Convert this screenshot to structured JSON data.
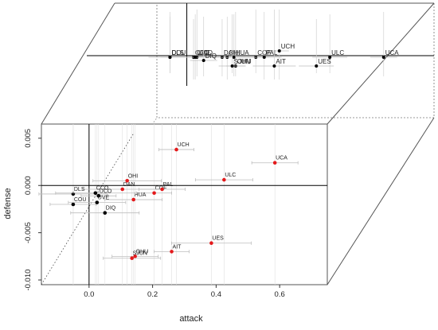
{
  "chart_data": {
    "type": "scatter",
    "xlabel": "attack",
    "ylabel": "defense",
    "xlim": [
      -0.15,
      0.75
    ],
    "ylim": [
      -0.0105,
      0.0065
    ],
    "x_ticks": [
      {
        "value": 0.0,
        "label": "0.0"
      },
      {
        "value": 0.2,
        "label": "0.2"
      },
      {
        "value": 0.4,
        "label": "0.4"
      },
      {
        "value": 0.6,
        "label": "0.6"
      }
    ],
    "y_ticks": [
      {
        "value": 0.005,
        "label": "0.005"
      },
      {
        "value": 0.0,
        "label": "0.000"
      },
      {
        "value": -0.005,
        "label": "-0.005"
      },
      {
        "value": -0.01,
        "label": "-0.010"
      }
    ],
    "reference_lines": {
      "x": 0,
      "y": 0,
      "diagonal": "dotted"
    },
    "colors": {
      "highlight": "#e41a1c",
      "default": "#000000",
      "errorbar": "#bdbdbd",
      "box": "#555555"
    },
    "points": [
      {
        "label": "UCH",
        "x": 0.275,
        "y": 0.0038,
        "highlight": true
      },
      {
        "label": "UCA",
        "x": 0.585,
        "y": 0.0024,
        "highlight": true
      },
      {
        "label": "ULC",
        "x": 0.425,
        "y": 0.0006,
        "highlight": true
      },
      {
        "label": "OHI",
        "x": 0.12,
        "y": 0.0005,
        "highlight": true
      },
      {
        "label": "DAN",
        "x": 0.105,
        "y": -0.0004,
        "highlight": true
      },
      {
        "label": "COF",
        "x": 0.205,
        "y": -0.0008,
        "highlight": true
      },
      {
        "label": "PAL",
        "x": 0.23,
        "y": -0.0004,
        "highlight": true
      },
      {
        "label": "HUA",
        "x": 0.14,
        "y": -0.0015,
        "highlight": true
      },
      {
        "label": "DLS",
        "x": -0.05,
        "y": -0.0009,
        "highlight": false
      },
      {
        "label": "CCO",
        "x": 0.02,
        "y": -0.0008,
        "highlight": false
      },
      {
        "label": "UCO",
        "x": 0.03,
        "y": -0.0011,
        "highlight": false
      },
      {
        "label": "COU",
        "x": -0.05,
        "y": -0.002,
        "highlight": false
      },
      {
        "label": "UVE",
        "x": 0.025,
        "y": -0.0018,
        "highlight": false
      },
      {
        "label": "DIQ",
        "x": 0.05,
        "y": -0.0029,
        "highlight": false
      },
      {
        "label": "UES",
        "x": 0.385,
        "y": -0.0061,
        "highlight": true
      },
      {
        "label": "AIT",
        "x": 0.26,
        "y": -0.007,
        "highlight": true
      },
      {
        "label": "OHU",
        "x": 0.145,
        "y": -0.0075,
        "highlight": true
      },
      {
        "label": "SJUN",
        "x": 0.135,
        "y": -0.0077,
        "highlight": true
      }
    ]
  }
}
